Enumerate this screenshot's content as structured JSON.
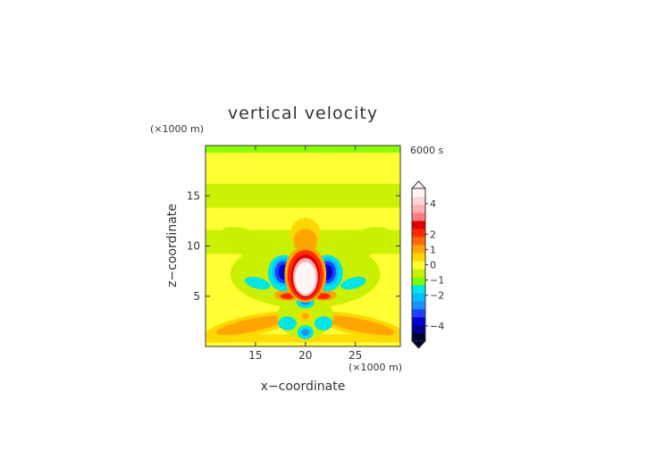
{
  "chart_data": {
    "type": "heatmap",
    "title": "vertical velocity",
    "time_label": "6000 s",
    "xlabel": "x−coordinate",
    "ylabel": "z−coordinate",
    "x_unit": "(×1000 m)",
    "y_unit": "(×1000 m)",
    "xlim": [
      10,
      29.5
    ],
    "ylim": [
      0,
      20
    ],
    "xticks": [
      15,
      20,
      25
    ],
    "yticks": [
      5,
      10,
      15
    ],
    "colorbar": {
      "ticks": [
        4,
        2,
        1,
        0,
        -1,
        -2,
        -4
      ],
      "tick_labels": [
        "4",
        "2",
        "1",
        "0",
        "−1",
        "−2",
        "−4"
      ],
      "range": [
        -5,
        5
      ],
      "extend": "both",
      "colors": [
        "#000033",
        "#00008b",
        "#0000cd",
        "#1e40ff",
        "#1e90ff",
        "#00bfff",
        "#00e5e5",
        "#7cfc00",
        "#c8f000",
        "#ffff33",
        "#ffd700",
        "#ffa500",
        "#ff6a00",
        "#ff2a00",
        "#e00000",
        "#ff7b7b",
        "#ffb0b0",
        "#ffd6d6",
        "#fff5f5"
      ]
    },
    "features": [
      {
        "x": 20,
        "z": 6.9,
        "value": 5.0
      },
      {
        "x": 20,
        "z": 8.2,
        "value": 2.5
      },
      {
        "x": 17.8,
        "z": 7.4,
        "value": -3.5
      },
      {
        "x": 22.2,
        "z": 7.4,
        "value": -3.5
      },
      {
        "x": 17.3,
        "z": 7.0,
        "value": -1.2
      },
      {
        "x": 22.7,
        "z": 7.0,
        "value": -1.2
      },
      {
        "x": 15.2,
        "z": 6.3,
        "value": -0.9
      },
      {
        "x": 24.8,
        "z": 6.3,
        "value": -0.9
      },
      {
        "x": 18.2,
        "z": 5.1,
        "value": 2.2
      },
      {
        "x": 21.8,
        "z": 5.1,
        "value": 2.2
      },
      {
        "x": 20,
        "z": 4.4,
        "value": -1.4
      },
      {
        "x": 20,
        "z": 3.0,
        "value": 0.9
      },
      {
        "x": 20,
        "z": 1.4,
        "value": -1.3
      },
      {
        "x": 18.2,
        "z": 2.3,
        "value": -1.0
      },
      {
        "x": 21.8,
        "z": 2.3,
        "value": -1.0
      },
      {
        "x": 14.6,
        "z": 2.1,
        "value": 1.0
      },
      {
        "x": 25.4,
        "z": 2.1,
        "value": 1.0
      }
    ],
    "grid": false
  }
}
